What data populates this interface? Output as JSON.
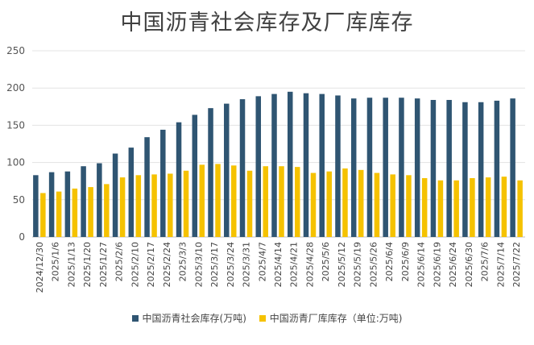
{
  "chart_data": {
    "type": "bar",
    "title": "中国沥青社会库存及厂库库存",
    "xlabel": "",
    "ylabel": "",
    "ylim": [
      0,
      250
    ],
    "yticks": [
      "0",
      "50",
      "100",
      "150",
      "200",
      "250"
    ],
    "grid": true,
    "legend_position": "bottom",
    "categories": [
      "2024/12/30",
      "2025/1/6",
      "2025/1/13",
      "2025/1/20",
      "2025/1/27",
      "2025/2/6",
      "2025/2/10",
      "2025/2/17",
      "2025/2/24",
      "2025/3/3",
      "2025/3/10",
      "2025/3/17",
      "2025/3/24",
      "2025/3/31",
      "2025/4/7",
      "2025/4/14",
      "2025/4/21",
      "2025/4/28",
      "2025/5/6",
      "2025/5/12",
      "2025/5/19",
      "2025/5/26",
      "2025/6/4",
      "2025/6/9",
      "2025/6/14",
      "2025/6/19",
      "2025/6/24",
      "2025/6/30",
      "2025/7/6",
      "2025/7/14",
      "2025/7/22"
    ],
    "series": [
      {
        "name": "中国沥青社会库存(万吨)",
        "color": "#2f5572",
        "values": [
          83,
          87,
          88,
          95,
          99,
          112,
          120,
          134,
          144,
          154,
          164,
          173,
          179,
          185,
          189,
          192,
          195,
          193,
          192,
          190,
          186,
          187,
          187,
          187,
          186,
          184,
          184,
          181,
          181,
          183,
          186
        ]
      },
      {
        "name": "中国沥青厂库库存（单位:万吨)",
        "color": "#f5c200",
        "values": [
          59,
          61,
          65,
          67,
          71,
          80,
          83,
          84,
          85,
          89,
          97,
          98,
          96,
          89,
          95,
          95,
          94,
          86,
          88,
          92,
          90,
          86,
          84,
          83,
          79,
          76,
          76,
          79,
          80,
          81,
          76
        ]
      }
    ]
  }
}
